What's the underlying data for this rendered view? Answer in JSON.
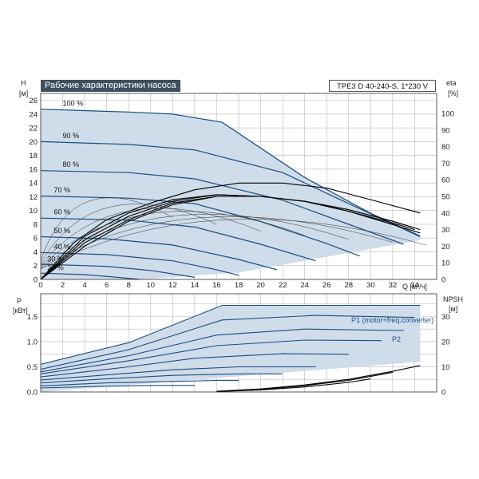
{
  "title": "Рабочие характеристики насоса",
  "model": "TPE3 D 40-240-S, 1*230 V",
  "colors": {
    "envelope": "#cfdcea",
    "curve": "#1c4d80",
    "flow": "#111111",
    "grid": "#b8b8b8",
    "title_bg": "#3f4f5e"
  },
  "chart_data": [
    {
      "type": "line",
      "title": "Рабочие характеристики насоса",
      "xlabel": "Q [м³/ч]",
      "ylabel": "H [м]",
      "y2label": "eta [%]",
      "xlim": [
        0,
        36
      ],
      "ylim": [
        0,
        27
      ],
      "y2lim": [
        0,
        112
      ],
      "x_ticks": [
        "0",
        "2",
        "4",
        "6",
        "8",
        "10",
        "12",
        "14",
        "16",
        "18",
        "20",
        "22",
        "24",
        "26",
        "28",
        "30",
        "32",
        "34"
      ],
      "y_ticks": [
        "0",
        "2",
        "4",
        "6",
        "8",
        "10",
        "12",
        "14",
        "16",
        "18",
        "20",
        "22",
        "24",
        "26"
      ],
      "y2_ticks": [
        "0",
        "10",
        "20",
        "30",
        "40",
        "50",
        "60",
        "70",
        "80",
        "90",
        "100"
      ],
      "grid": true,
      "speed_labels": [
        "100 %",
        "90 %",
        "80 %",
        "70 %",
        "60 %",
        "50 %",
        "40 %",
        "30 %",
        "20 %"
      ],
      "series": [
        {
          "name": "100 %",
          "x": [
            0,
            8,
            12,
            16.5,
            24,
            30,
            34.5
          ],
          "y": [
            24.7,
            24.3,
            24.0,
            22.8,
            14.8,
            9.6,
            6.3
          ]
        },
        {
          "name": "90 %",
          "x": [
            0,
            8,
            14,
            22,
            28,
            34.5
          ],
          "y": [
            20.0,
            19.6,
            18.8,
            15.5,
            11.0,
            6.2
          ]
        },
        {
          "name": "80 %",
          "x": [
            0,
            8,
            14,
            22,
            28,
            33
          ],
          "y": [
            15.8,
            15.5,
            14.6,
            11.5,
            8.0,
            5.1
          ]
        },
        {
          "name": "70 %",
          "x": [
            0,
            8,
            14,
            20,
            26,
            29
          ],
          "y": [
            12.1,
            11.8,
            11.0,
            8.4,
            5.2,
            3.4
          ]
        },
        {
          "name": "60 %",
          "x": [
            0,
            8,
            14,
            20,
            25
          ],
          "y": [
            8.9,
            8.6,
            7.6,
            5.1,
            2.7
          ]
        },
        {
          "name": "50 %",
          "x": [
            0,
            6,
            12,
            18,
            21.5
          ],
          "y": [
            6.2,
            5.9,
            5.0,
            2.9,
            1.4
          ]
        },
        {
          "name": "40 %",
          "x": [
            0,
            6,
            12,
            16,
            18
          ],
          "y": [
            3.9,
            3.6,
            2.7,
            1.4,
            0.6
          ]
        },
        {
          "name": "30 %",
          "x": [
            0,
            6,
            10,
            14
          ],
          "y": [
            2.2,
            1.9,
            1.3,
            0.3
          ]
        },
        {
          "name": "20 %",
          "x": [
            0,
            4,
            7,
            9
          ],
          "y": [
            0.9,
            0.7,
            0.3,
            0.0
          ]
        }
      ],
      "efficiency": [
        {
          "x": [
            0,
            4,
            8,
            12,
            16,
            20,
            24,
            28,
            32,
            34.5
          ],
          "y": [
            0,
            20,
            35,
            45,
            50,
            50,
            47,
            41,
            33,
            28
          ]
        },
        {
          "x": [
            0,
            4,
            8,
            12,
            16,
            20,
            24,
            28,
            32,
            34
          ],
          "y": [
            0,
            22,
            36,
            46,
            50,
            50,
            47,
            41,
            34,
            30
          ]
        },
        {
          "x": [
            0,
            4,
            8,
            12,
            16,
            20,
            24,
            28,
            32,
            34
          ],
          "y": [
            0,
            24,
            38,
            47,
            51,
            50,
            47,
            42,
            35,
            31
          ]
        },
        {
          "x": [
            0,
            4,
            8,
            12,
            16,
            20,
            24,
            28,
            32,
            34.5
          ],
          "y": [
            0,
            26,
            40,
            48,
            51,
            50,
            47,
            42,
            35,
            30
          ]
        },
        {
          "x": [
            0,
            3,
            6,
            10,
            14,
            18,
            22,
            26,
            30,
            34.5
          ],
          "y": [
            0,
            22,
            36,
            46,
            54,
            58,
            58,
            55,
            48,
            40
          ]
        }
      ]
    },
    {
      "type": "line",
      "ylabel": "P [кВт]",
      "y2label": "NPSH [м]",
      "xlim": [
        0,
        36
      ],
      "ylim": [
        0,
        1.95
      ],
      "y2lim": [
        0,
        39
      ],
      "y_ticks": [
        "0.0",
        "0.5",
        "1.0",
        "1.5"
      ],
      "y2_ticks": [
        "0",
        "10",
        "20",
        "30"
      ],
      "grid": true,
      "legend": [
        "P1 (motor+freq.converter)",
        "P2"
      ],
      "series": [
        {
          "name": "P1 (motor+freq.converter)",
          "x": [
            0,
            8,
            16.5,
            25,
            34.5
          ],
          "y": [
            0.55,
            0.98,
            1.72,
            1.72,
            1.72
          ]
        },
        {
          "name": "P2",
          "x": [
            0,
            8,
            16.5,
            25,
            34
          ],
          "y": [
            0.45,
            0.84,
            1.43,
            1.52,
            1.48
          ]
        },
        {
          "x": [
            0,
            8,
            16,
            24,
            33
          ],
          "y": [
            0.4,
            0.72,
            1.13,
            1.25,
            1.22
          ]
        },
        {
          "x": [
            0,
            8,
            16,
            24,
            31
          ],
          "y": [
            0.36,
            0.62,
            0.92,
            1.03,
            1.02
          ]
        },
        {
          "x": [
            0,
            8,
            14,
            22,
            28
          ],
          "y": [
            0.3,
            0.5,
            0.67,
            0.76,
            0.75
          ]
        },
        {
          "x": [
            0,
            6,
            12,
            18,
            25
          ],
          "y": [
            0.24,
            0.34,
            0.44,
            0.5,
            0.5
          ]
        },
        {
          "x": [
            0,
            6,
            12,
            18,
            22
          ],
          "y": [
            0.18,
            0.26,
            0.33,
            0.36,
            0.36
          ]
        },
        {
          "x": [
            0,
            6,
            12,
            16,
            18
          ],
          "y": [
            0.12,
            0.18,
            0.21,
            0.23,
            0.23
          ]
        },
        {
          "x": [
            0,
            5,
            10,
            14
          ],
          "y": [
            0.08,
            0.11,
            0.13,
            0.13
          ]
        }
      ],
      "npsh": [
        {
          "x": [
            16,
            20,
            24,
            28,
            32,
            34.5
          ],
          "y": [
            0.3,
            1.2,
            2.8,
            5.0,
            8.2,
            10.5
          ]
        },
        {
          "x": [
            16,
            20,
            24,
            28,
            32
          ],
          "y": [
            0.2,
            1.0,
            2.5,
            4.6,
            7.8
          ]
        },
        {
          "x": [
            16,
            20,
            24,
            28,
            30
          ],
          "y": [
            0.2,
            0.8,
            2.0,
            3.8,
            5.2
          ]
        }
      ]
    }
  ]
}
